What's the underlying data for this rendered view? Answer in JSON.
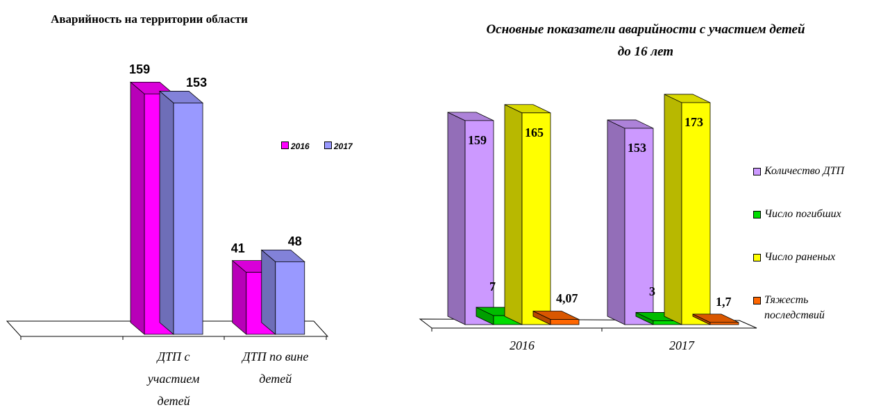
{
  "chart_data": [
    {
      "type": "bar",
      "title": "Аварийность на территории области",
      "categories": [
        null,
        "ДТП с участием детей",
        "ДТП по вине детей"
      ],
      "series": [
        {
          "name": "2016",
          "color": "#ff00ff",
          "values": [
            null,
            159,
            41
          ]
        },
        {
          "name": "2017",
          "color": "#9999ff",
          "values": [
            null,
            153,
            48
          ]
        }
      ],
      "legend": "right"
    },
    {
      "type": "bar",
      "title": "Основные показатели аварийности с участием детей до 16  лет",
      "categories": [
        "2016",
        "2017"
      ],
      "series": [
        {
          "name": "Количество ДТП",
          "color": "#cc99ff",
          "values": [
            159,
            153
          ]
        },
        {
          "name": "Число погибших",
          "color": "#00dd00",
          "values": [
            7,
            3
          ]
        },
        {
          "name": "Число раненых",
          "color": "#ffff00",
          "values": [
            165,
            173
          ]
        },
        {
          "name": "Тяжесть последствий",
          "color": "#ff6600",
          "values": [
            4.07,
            1.7
          ],
          "value_labels": [
            "4,07",
            "1,7"
          ]
        }
      ],
      "legend": "right"
    }
  ]
}
